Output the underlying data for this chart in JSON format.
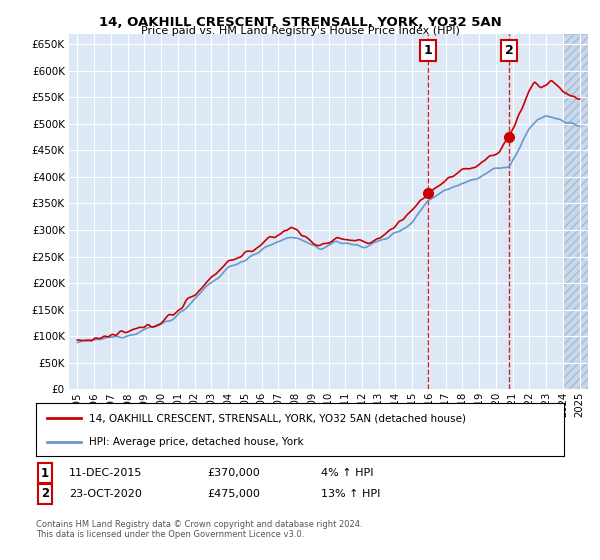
{
  "title1": "14, OAKHILL CRESCENT, STRENSALL, YORK, YO32 5AN",
  "title2": "Price paid vs. HM Land Registry's House Price Index (HPI)",
  "legend_line1": "14, OAKHILL CRESCENT, STRENSALL, YORK, YO32 5AN (detached house)",
  "legend_line2": "HPI: Average price, detached house, York",
  "annotation1_label": "1",
  "annotation1_date": "11-DEC-2015",
  "annotation1_price": "£370,000",
  "annotation1_hpi": "4% ↑ HPI",
  "annotation1_year": 2015.95,
  "annotation1_value": 370000,
  "annotation2_label": "2",
  "annotation2_date": "23-OCT-2020",
  "annotation2_price": "£475,000",
  "annotation2_hpi": "13% ↑ HPI",
  "annotation2_year": 2020.8,
  "annotation2_value": 475000,
  "footer": "Contains HM Land Registry data © Crown copyright and database right 2024.\nThis data is licensed under the Open Government Licence v3.0.",
  "hpi_color": "#6699cc",
  "price_color": "#cc0000",
  "background_plot": "#dce8f5",
  "background_hatch_color": "#c8d8eb",
  "grid_color": "#ffffff",
  "ylim": [
    0,
    670000
  ],
  "yticks": [
    0,
    50000,
    100000,
    150000,
    200000,
    250000,
    300000,
    350000,
    400000,
    450000,
    500000,
    550000,
    600000,
    650000
  ],
  "xlim_start": 1994.5,
  "xlim_end": 2025.5,
  "xticks": [
    1995,
    1996,
    1997,
    1998,
    1999,
    2000,
    2001,
    2002,
    2003,
    2004,
    2005,
    2006,
    2007,
    2008,
    2009,
    2010,
    2011,
    2012,
    2013,
    2014,
    2015,
    2016,
    2017,
    2018,
    2019,
    2020,
    2021,
    2022,
    2023,
    2024,
    2025
  ]
}
